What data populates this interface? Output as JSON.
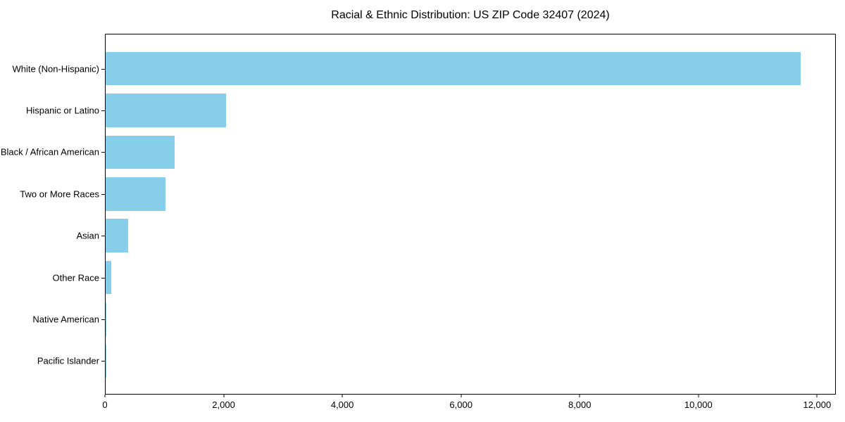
{
  "title": "Racial & Ethnic Distribution: US ZIP Code 32407 (2024)",
  "colors": {
    "bar": "#87CEEB",
    "axis": "#000000",
    "text": "#000000",
    "background": "#FFFFFF"
  },
  "chart_data": {
    "type": "bar",
    "orientation": "horizontal",
    "title": "Racial & Ethnic Distribution: US ZIP Code 32407 (2024)",
    "categories": [
      "White (Non-Hispanic)",
      "Hispanic or Latino",
      "Black / African American",
      "Two or More Races",
      "Asian",
      "Other Race",
      "Native American",
      "Pacific Islander"
    ],
    "values": [
      11730,
      2030,
      1160,
      1010,
      380,
      95,
      15,
      5
    ],
    "xlabel": "",
    "ylabel": "",
    "xlim": [
      0,
      12316
    ],
    "x_ticks": [
      0,
      2000,
      4000,
      6000,
      8000,
      10000,
      12000
    ],
    "x_tick_labels": [
      "0",
      "2,000",
      "4,000",
      "6,000",
      "8,000",
      "10,000",
      "12,000"
    ],
    "grid": false,
    "legend": null,
    "bar_height_fraction": 0.8
  }
}
